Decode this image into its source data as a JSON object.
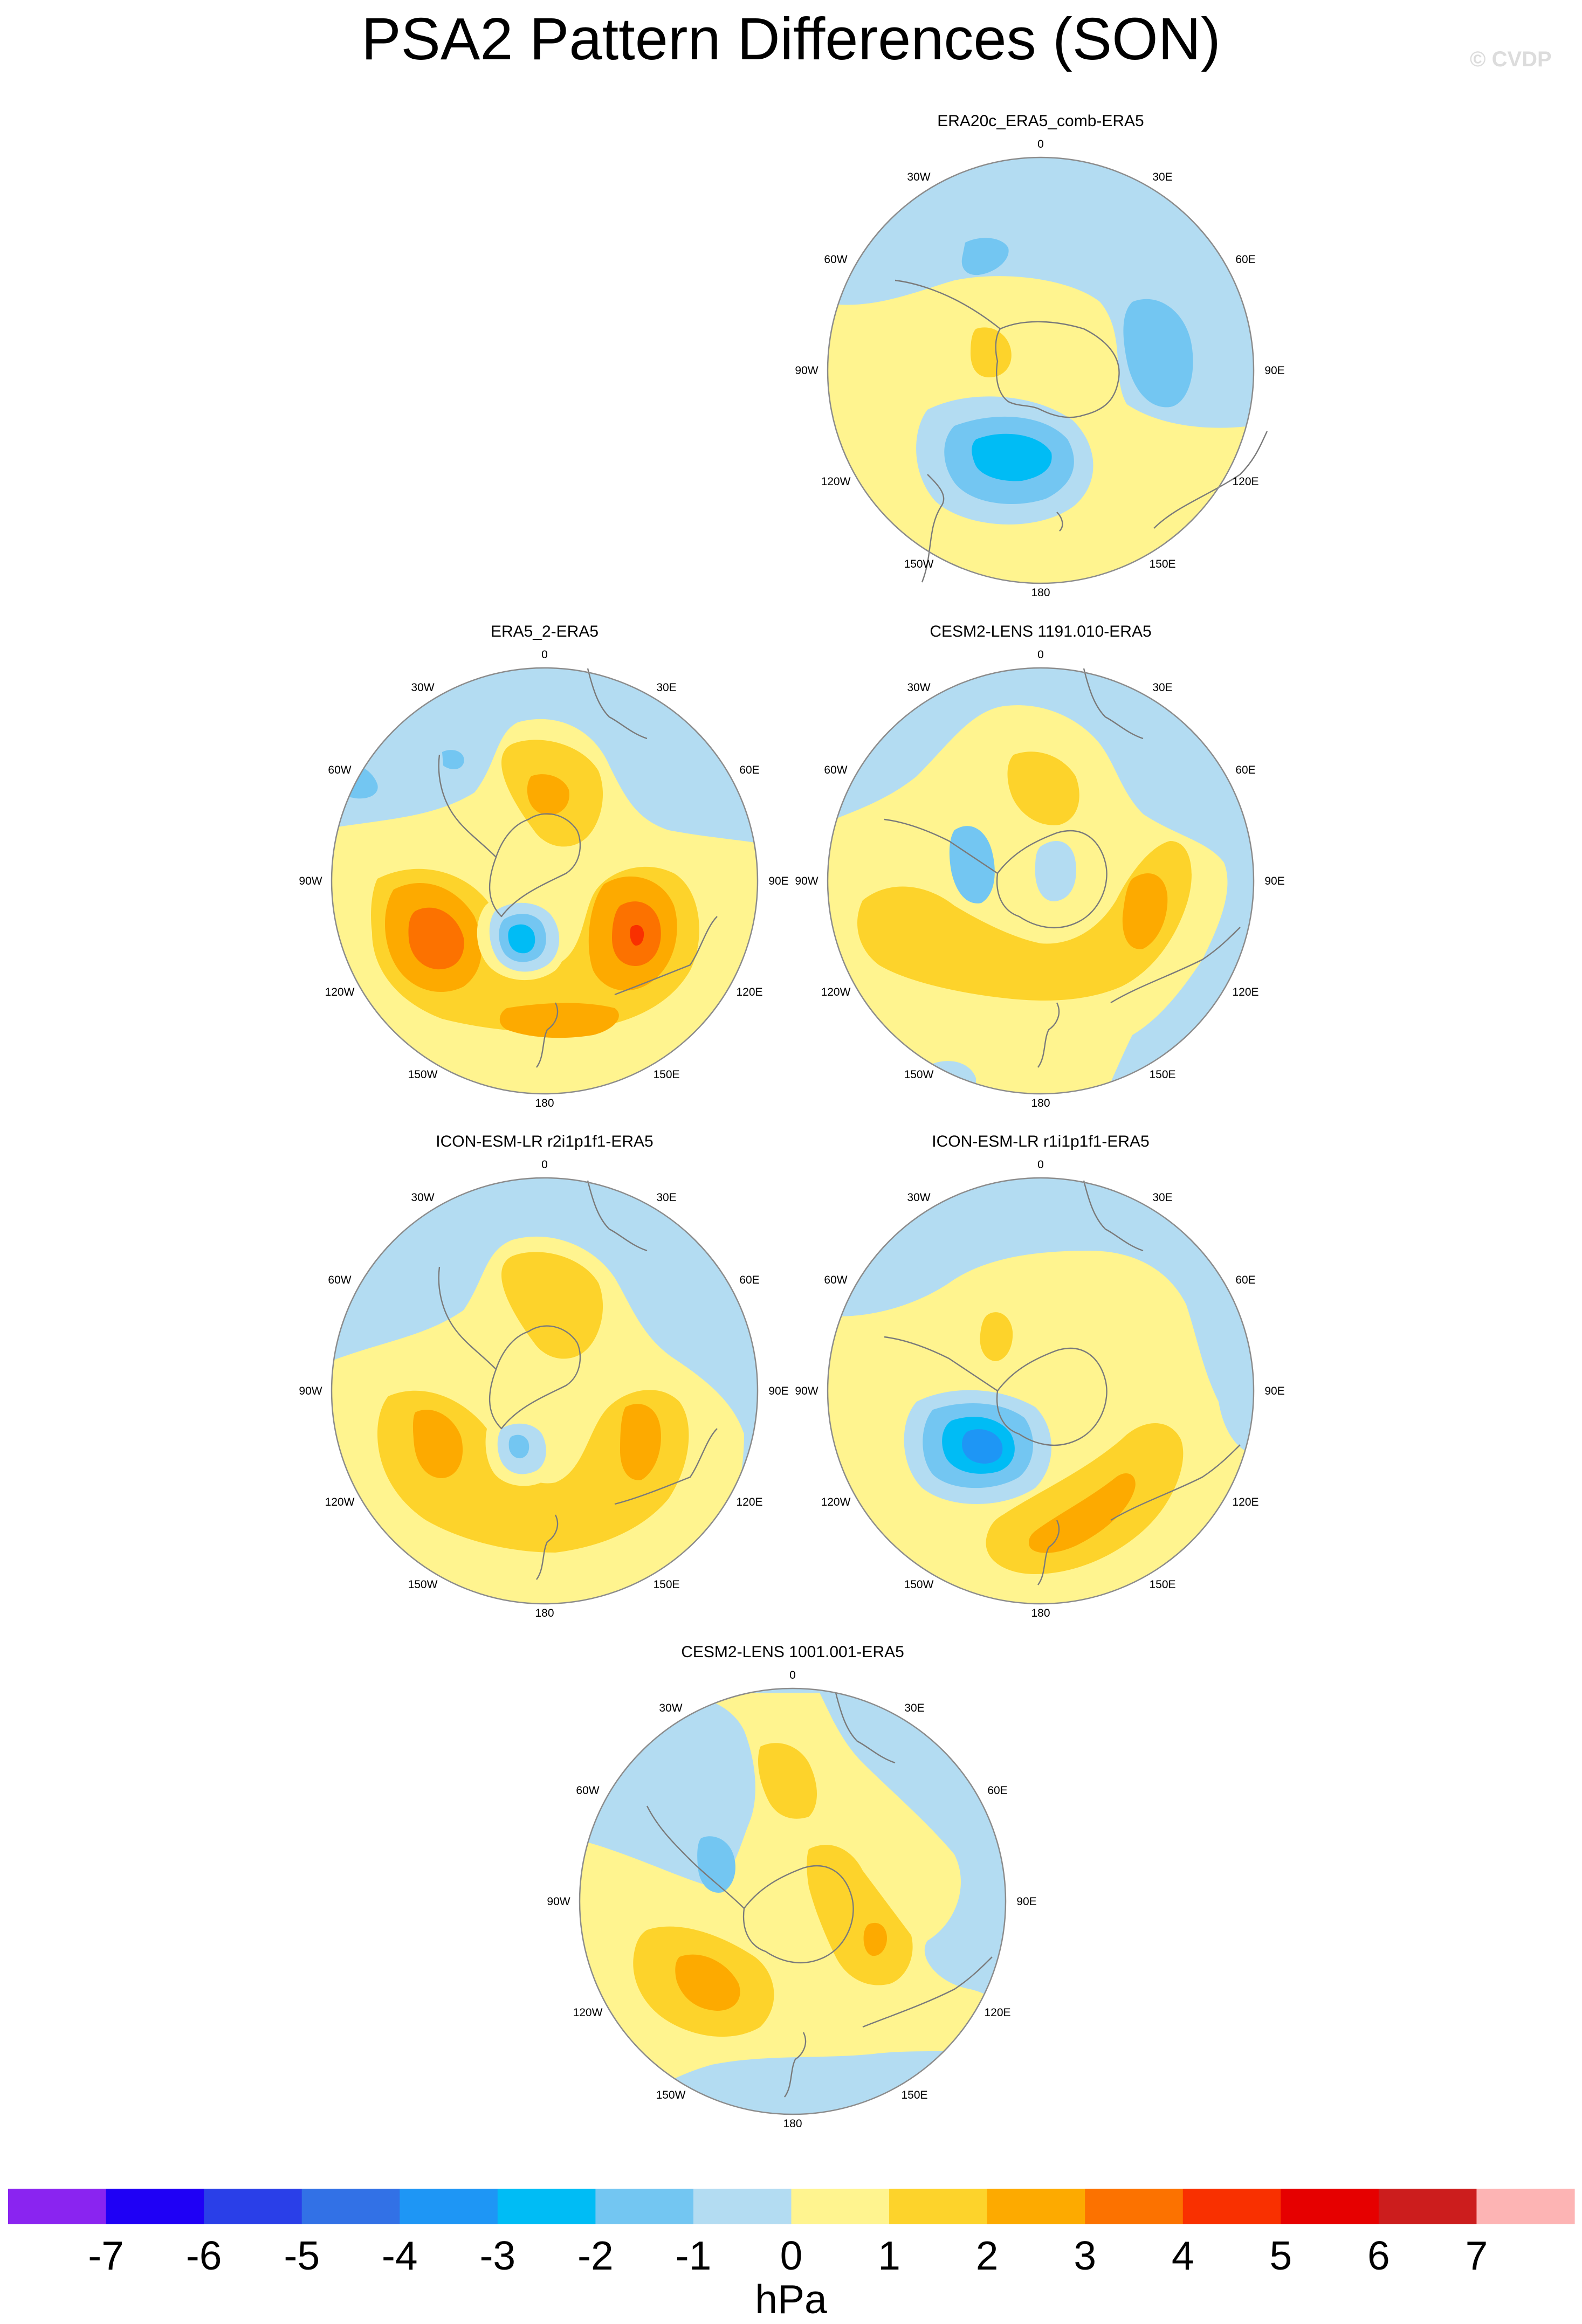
{
  "title": "PSA2 Pattern Differences (SON)",
  "watermark": "© CVDP",
  "palette": {
    "lt_m7": "#8a24f0",
    "lt_m6": "#1f00f5",
    "lt_m5": "#2a3fe8",
    "lt_m4": "#3271e6",
    "lt_m3": "#1e96f5",
    "lt_m2": "#00bcf5",
    "lt_m1": "#73c6f2",
    "lt_0": "#b3dcf2",
    "ge_0": "#fff48f",
    "ge_1": "#fdd32b",
    "ge_2": "#fdaa00",
    "ge_3": "#fc7200",
    "ge_4": "#f93000",
    "ge_5": "#e60000",
    "ge_6": "#cc1d1d",
    "ge_7": "#fdb4b4"
  },
  "lon_labels": [
    "0",
    "30E",
    "60E",
    "90E",
    "120E",
    "150E",
    "180",
    "150W",
    "120W",
    "90W",
    "60W",
    "30W"
  ],
  "panels": [
    {
      "id": "p1",
      "title": "ERA20c_ERA5_comb-ERA5"
    },
    {
      "id": "p2",
      "title": "ERA5_2-ERA5"
    },
    {
      "id": "p3",
      "title": "CESM2-LENS 1191.010-ERA5"
    },
    {
      "id": "p4",
      "title": "ICON-ESM-LR r2i1p1f1-ERA5"
    },
    {
      "id": "p5",
      "title": "ICON-ESM-LR r1i1p1f1-ERA5"
    },
    {
      "id": "p6",
      "title": "CESM2-LENS 1001.001-ERA5"
    }
  ],
  "colorbar": {
    "units": "hPa",
    "ticks": [
      "-7",
      "-6",
      "-5",
      "-4",
      "-3",
      "-2",
      "-1",
      "0",
      "1",
      "2",
      "3",
      "4",
      "5",
      "6",
      "7"
    ],
    "bins": [
      {
        "min": null,
        "max": -7,
        "color": "#8a24f0"
      },
      {
        "min": -7,
        "max": -6,
        "color": "#1f00f5"
      },
      {
        "min": -6,
        "max": -5,
        "color": "#2a3fe8"
      },
      {
        "min": -5,
        "max": -4,
        "color": "#3271e6"
      },
      {
        "min": -4,
        "max": -3,
        "color": "#1e96f5"
      },
      {
        "min": -3,
        "max": -2,
        "color": "#00bcf5"
      },
      {
        "min": -2,
        "max": -1,
        "color": "#73c6f2"
      },
      {
        "min": -1,
        "max": 0,
        "color": "#b3dcf2"
      },
      {
        "min": 0,
        "max": 1,
        "color": "#fff48f"
      },
      {
        "min": 1,
        "max": 2,
        "color": "#fdd32b"
      },
      {
        "min": 2,
        "max": 3,
        "color": "#fdaa00"
      },
      {
        "min": 3,
        "max": 4,
        "color": "#fc7200"
      },
      {
        "min": 4,
        "max": 5,
        "color": "#f93000"
      },
      {
        "min": 5,
        "max": 6,
        "color": "#e60000"
      },
      {
        "min": 6,
        "max": 7,
        "color": "#cc1d1d"
      },
      {
        "min": 7,
        "max": null,
        "color": "#fdb4b4"
      }
    ]
  }
}
